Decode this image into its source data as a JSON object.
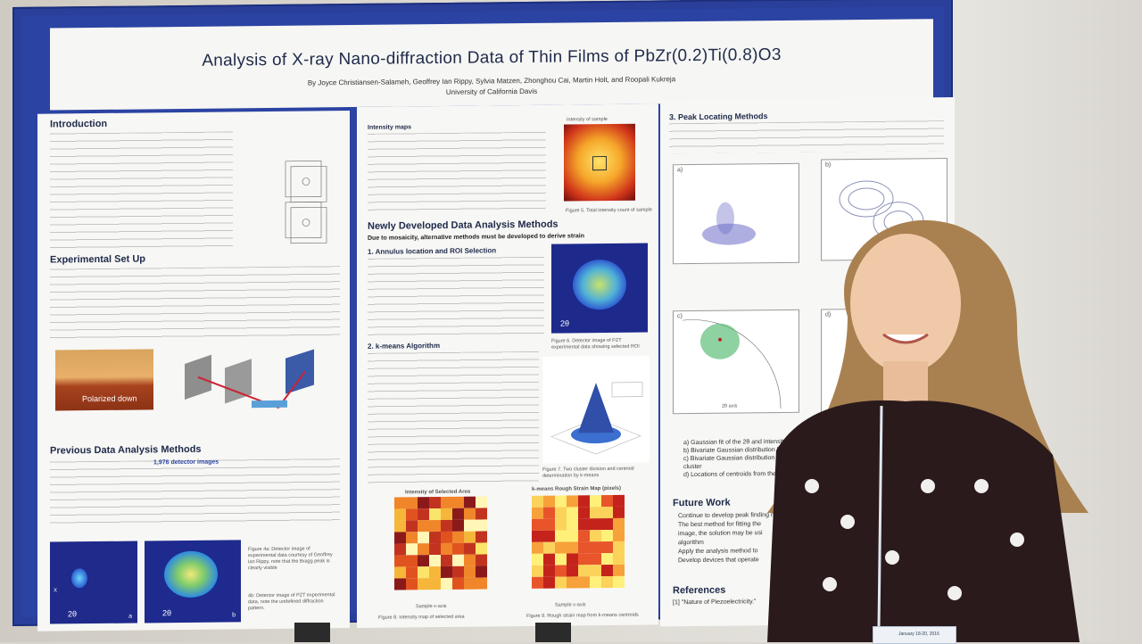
{
  "poster": {
    "title": "Analysis of X-ray Nano-diffraction Data of Thin Films of PbZr(0.2)Ti(0.8)O3",
    "authors": "By Joyce Christiansen-Salameh, Geoffrey Ian Rippy, Sylvia Matzen, Zhonghou Cai, Martin Holt, and Roopali Kukreja",
    "affiliation": "University of California Davis",
    "sections": {
      "intro": "Introduction",
      "setup": "Experimental Set Up",
      "previous": "Previous Data Analysis Methods",
      "new_methods": "Newly Developed Data Analysis Methods",
      "new_methods_sub": "Due to mosaicity, alternative methods must be developed to derive strain",
      "annulus": "1. Annulus location and ROI Selection",
      "kmeans": "2. k-means Algorithm",
      "intensity_maps": "Intensity maps",
      "peak": "3. Peak Locating Methods",
      "future": "Future Work",
      "references": "References"
    },
    "previous_highlight": "1,976 detector images",
    "future_items": [
      "Continue to develop peak finding m",
      "The best method for fitting the",
      "image, the solution may be usi",
      "algorithm",
      "Apply the analysis method to ",
      "Develop devices that operate"
    ],
    "peak_items": [
      "a) Gaussian fit of the 2θ  and intensity po",
      "b) Bivariate Gaussian distribution fit of t",
      "c) Bivariate Gaussian distribution fit of",
      "cluster",
      "d) Locations of centroids from the fo"
    ],
    "reference_1": "[1] \"Nature of Piezoelectricity.\"",
    "captions": {
      "intensity_sample": "Intensity of sample",
      "total_intensity": "Figure 5. Total intensity count of sample",
      "roi": "Figure 6. Detector image of PZT experimental data showing selected ROI",
      "cluster": "Figure 7. Two cluster division and centroid determination by k-means",
      "selected_area": "Intensity of Selected Area",
      "rough_strain": "k-means Rough Strain Map (pixels)",
      "fig8": "Figure 8. Intensity map of selected area",
      "fig9": "Figure 9. Rough strain map from k-means centroids",
      "polarized": "Polarized down",
      "fig4a": "Figure 4a: Detector image of experimental data courtesy of Geoffrey Ian Rippy, note that the Bragg peak is clearly visible",
      "fig4b": "4b: Detector image of PZT experimental data, note the undefined diffraction pattern.",
      "axis_2theta": "2θ",
      "axis_x": "X",
      "label_a": "a",
      "label_b": "b",
      "plot_a": "a)",
      "plot_b": "b)",
      "plot_c": "c)",
      "plot_d": "d)",
      "sample_x": "Sample x-axis",
      "sample_y": "Sample y-axis",
      "axis_2theta_label": "2θ axis"
    },
    "badge": "January 18-20, 2016"
  },
  "colors": {
    "poster_border": "#2a3f9a",
    "panel_bg": "#f7f7f5",
    "heading": "#1f2a4a"
  }
}
